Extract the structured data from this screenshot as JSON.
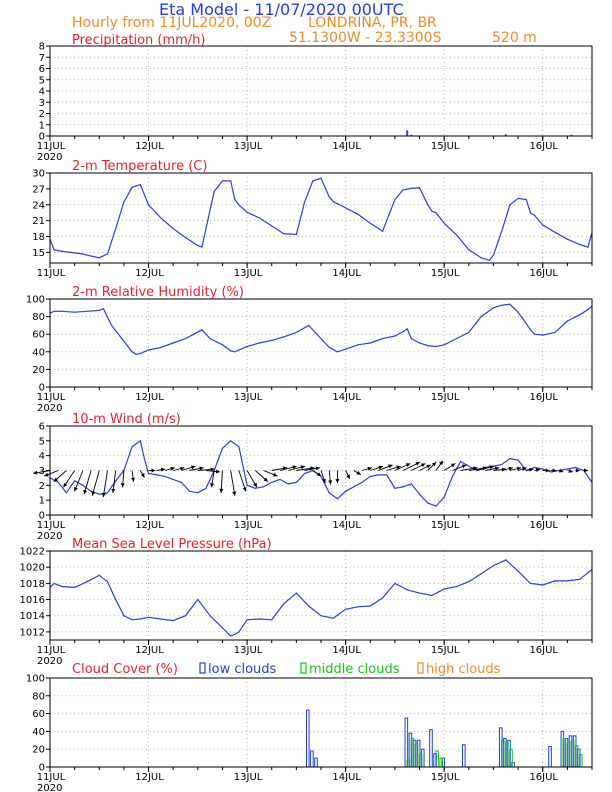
{
  "header": {
    "title": "Eta Model  -  11/07/2020 00UTC",
    "run_line": "Hourly from 11JUL2020, 00Z",
    "location": "LONDRINA, PR, BR",
    "coords": "51.1300W  -  23.3300S",
    "elevation": "520  m"
  },
  "colors": {
    "title": "#1f3fe0",
    "info": "#ee8a26",
    "panel_title": "#e8202a",
    "series": "#2a3fe0",
    "low_clouds": "#1f3fe0",
    "middle_clouds": "#16c21a",
    "high_clouds": "#ee8a26",
    "arrow": "#000000",
    "grid": "#9a9a9a"
  },
  "x_axis": {
    "range_hours": [
      0,
      132
    ],
    "tick_hours": [
      0,
      24,
      48,
      72,
      96,
      120
    ],
    "tick_labels": [
      "11JUL",
      "12JUL",
      "13JUL",
      "14JUL",
      "15JUL",
      "16JUL"
    ],
    "year_label": "2020"
  },
  "chart_data": [
    {
      "id": "precip",
      "type": "bar",
      "title": "Precipitation (mm/h)",
      "ylim": [
        0,
        8
      ],
      "yticks": [
        0,
        1,
        2,
        3,
        4,
        5,
        6,
        7,
        8
      ],
      "x_hours": [
        87,
        88,
        111,
        127
      ],
      "values": [
        0.5,
        0.1,
        0.15,
        0.1
      ]
    },
    {
      "id": "temp",
      "type": "line",
      "title": "2-m Temperature (C)",
      "ylim": [
        13,
        30
      ],
      "yticks": [
        15,
        18,
        21,
        24,
        27,
        30
      ],
      "x_hours": [
        0,
        1,
        3,
        5,
        8,
        10,
        12,
        14,
        16,
        18,
        20,
        22,
        24,
        27,
        30,
        33,
        36,
        37,
        40,
        42,
        44,
        45,
        46,
        48,
        51,
        54,
        57,
        60,
        62,
        64,
        66,
        68,
        69,
        70,
        72,
        75,
        78,
        81,
        84,
        86,
        88,
        90,
        92,
        93,
        94,
        96,
        99,
        102,
        105,
        107,
        108,
        110,
        112,
        114,
        116,
        117,
        118,
        120,
        123,
        126,
        129,
        131,
        132
      ],
      "values": [
        17.5,
        15.5,
        15.2,
        15.0,
        14.7,
        14.3,
        14.0,
        14.7,
        19.5,
        24.5,
        27.3,
        27.8,
        24,
        21.5,
        19.5,
        17.8,
        16.3,
        16.0,
        26.5,
        28.5,
        28.5,
        25.0,
        24.0,
        22.6,
        21.5,
        20.0,
        18.5,
        18.4,
        24.5,
        28.5,
        29.0,
        25.5,
        24.6,
        24.2,
        23.4,
        22.2,
        20.5,
        19.0,
        25.0,
        26.8,
        27.1,
        27.2,
        24.0,
        22.8,
        22.5,
        20.5,
        18.3,
        15.5,
        14.0,
        13.5,
        14.5,
        19.0,
        24.0,
        25.2,
        25.0,
        22.5,
        22.0,
        20.2,
        18.8,
        17.5,
        16.5,
        16.0,
        18.7
      ]
    },
    {
      "id": "rh",
      "type": "line",
      "title": "2-m Relative Humidity (%)",
      "ylim": [
        0,
        100
      ],
      "yticks": [
        0,
        20,
        40,
        60,
        80,
        100
      ],
      "x_hours": [
        0,
        1,
        3,
        6,
        9,
        12,
        13,
        15,
        18,
        20,
        21,
        22,
        24,
        27,
        30,
        33,
        35,
        37,
        39,
        42,
        44,
        45,
        46,
        48,
        51,
        54,
        57,
        60,
        63,
        66,
        68,
        70,
        72,
        75,
        78,
        81,
        84,
        86,
        87,
        88,
        90,
        92,
        94,
        96,
        99,
        102,
        105,
        108,
        110,
        112,
        114,
        116,
        117,
        118,
        120,
        123,
        126,
        129,
        131,
        132
      ],
      "values": [
        84,
        86,
        86,
        85,
        86,
        87,
        89,
        70,
        52,
        40,
        37,
        38,
        42,
        45,
        50,
        55,
        60,
        65,
        55,
        48,
        41,
        40,
        42,
        46,
        50,
        53,
        57,
        62,
        70,
        55,
        45,
        40,
        43,
        48,
        50,
        55,
        58,
        63,
        66,
        55,
        50,
        47,
        46,
        48,
        55,
        62,
        80,
        90,
        93,
        94,
        85,
        72,
        65,
        60,
        59,
        62,
        75,
        82,
        88,
        92
      ]
    },
    {
      "id": "wind",
      "type": "line",
      "title": "10-m Wind (m/s)",
      "ylim": [
        0,
        6
      ],
      "yticks": [
        0,
        1,
        2,
        3,
        4,
        5,
        6
      ],
      "x_hours": [
        0,
        2,
        4,
        6,
        8,
        10,
        12,
        14,
        16,
        18,
        20,
        22,
        23,
        24,
        26,
        28,
        30,
        32,
        34,
        36,
        38,
        40,
        42,
        44,
        46,
        48,
        50,
        52,
        54,
        56,
        58,
        60,
        62,
        64,
        66,
        68,
        70,
        72,
        74,
        76,
        78,
        80,
        82,
        84,
        86,
        88,
        90,
        92,
        94,
        96,
        98,
        100,
        102,
        104,
        106,
        108,
        110,
        112,
        114,
        116,
        118,
        120,
        122,
        124,
        126,
        128,
        130,
        132
      ],
      "values": [
        2.5,
        2.2,
        1.5,
        2.3,
        2.0,
        1.6,
        1.4,
        1.5,
        2.3,
        3.0,
        4.6,
        5.0,
        3.8,
        2.8,
        2.7,
        2.6,
        2.4,
        2.2,
        1.6,
        1.5,
        1.8,
        3.0,
        4.5,
        5.0,
        4.6,
        2.0,
        1.8,
        1.9,
        2.2,
        2.4,
        2.1,
        2.2,
        2.8,
        3.0,
        2.6,
        1.5,
        1.1,
        1.6,
        1.9,
        2.2,
        2.6,
        2.7,
        2.7,
        1.8,
        1.9,
        2.1,
        1.4,
        0.8,
        0.6,
        1.2,
        2.6,
        3.6,
        3.3,
        3.0,
        3.2,
        3.3,
        3.4,
        3.8,
        3.7,
        3.0,
        3.2,
        3.1,
        2.9,
        3.0,
        3.1,
        3.2,
        3.0,
        2.2
      ],
      "vectors": {
        "base": 3.0,
        "x_hours": [
          0,
          2,
          4,
          6,
          8,
          10,
          12,
          14,
          16,
          18,
          20,
          22,
          24,
          26,
          28,
          30,
          32,
          34,
          36,
          38,
          40,
          42,
          44,
          46,
          48,
          50,
          52,
          54,
          56,
          58,
          60,
          62,
          64,
          66,
          68,
          70,
          72,
          74,
          76,
          78,
          80,
          82,
          84,
          86,
          88,
          90,
          92,
          94,
          96,
          98,
          100,
          102,
          104,
          106,
          108,
          110,
          112,
          114,
          116,
          118,
          120,
          122,
          124,
          126,
          128,
          130
        ],
        "u": [
          -1.2,
          -1.0,
          -0.9,
          -0.8,
          -0.6,
          -0.5,
          -0.5,
          -0.3,
          -0.2,
          -0.1,
          0.1,
          0.3,
          0.5,
          0.6,
          0.7,
          0.8,
          1.0,
          1.0,
          1.2,
          1.0,
          -0.2,
          -0.1,
          0.3,
          0.5,
          0.7,
          0.9,
          1.0,
          1.1,
          1.2,
          1.2,
          1.3,
          1.1,
          0.6,
          0.3,
          0.1,
          0.0,
          0.3,
          0.5,
          0.7,
          0.9,
          1.0,
          1.0,
          1.1,
          1.2,
          1.0,
          0.8,
          0.6,
          0.5,
          0.8,
          1.0,
          1.2,
          1.3,
          1.2,
          1.0,
          0.9,
          0.8,
          0.8,
          0.6,
          0.5,
          0.4,
          0.5,
          0.4,
          0.3,
          0.4,
          0.3,
          0.3
        ],
        "v": [
          -0.2,
          -0.4,
          -0.8,
          -1.2,
          -1.5,
          -1.7,
          -1.8,
          -1.9,
          -1.6,
          -1.2,
          -0.8,
          -0.5,
          0.0,
          0.1,
          0.2,
          0.2,
          0.3,
          0.2,
          0.1,
          -0.1,
          -1.2,
          -1.6,
          -1.8,
          -1.5,
          -1.2,
          -0.8,
          -0.4,
          0.2,
          0.3,
          0.3,
          0.2,
          0.2,
          -0.4,
          -0.9,
          -1.0,
          -0.9,
          -0.6,
          -0.3,
          0.2,
          0.3,
          0.4,
          0.3,
          0.5,
          0.6,
          0.5,
          0.4,
          0.6,
          0.7,
          0.5,
          0.4,
          0.2,
          0.2,
          0.3,
          0.2,
          0.1,
          0.2,
          0.2,
          0.2,
          0.1,
          0.1,
          0.0,
          0.0,
          -0.1,
          -0.1,
          0.0,
          0.0
        ]
      }
    },
    {
      "id": "mslp",
      "type": "line",
      "title": "Mean Sea Level Pressure (hPa)",
      "ylim": [
        1011,
        1022
      ],
      "yticks": [
        1012,
        1014,
        1016,
        1018,
        1020,
        1022
      ],
      "x_hours": [
        0,
        1,
        3,
        6,
        9,
        12,
        14,
        16,
        18,
        20,
        22,
        24,
        27,
        30,
        33,
        36,
        39,
        42,
        44,
        45,
        46,
        48,
        51,
        54,
        57,
        60,
        63,
        66,
        69,
        72,
        75,
        78,
        81,
        84,
        87,
        90,
        93,
        96,
        99,
        102,
        105,
        108,
        111,
        114,
        117,
        120,
        123,
        126,
        129,
        131,
        132
      ],
      "values": [
        1017.5,
        1018.0,
        1017.6,
        1017.5,
        1018.2,
        1019.0,
        1018.2,
        1016.0,
        1014.0,
        1013.5,
        1013.6,
        1013.8,
        1013.6,
        1013.4,
        1014.0,
        1016.0,
        1014.0,
        1012.5,
        1011.5,
        1011.7,
        1012.0,
        1013.5,
        1013.6,
        1013.5,
        1015.5,
        1016.8,
        1015.2,
        1014.0,
        1013.7,
        1014.8,
        1015.1,
        1015.2,
        1016.2,
        1018.0,
        1017.2,
        1016.8,
        1016.5,
        1017.3,
        1017.6,
        1018.2,
        1019.2,
        1020.2,
        1020.9,
        1019.5,
        1018.0,
        1017.8,
        1018.3,
        1018.3,
        1018.5,
        1019.3,
        1019.7
      ]
    },
    {
      "id": "cloud",
      "type": "bar",
      "title": "Cloud Cover (%)",
      "legend": [
        "low clouds",
        "middle clouds",
        "high clouds"
      ],
      "ylim": [
        0,
        100
      ],
      "yticks": [
        0,
        20,
        40,
        60,
        80,
        100
      ],
      "series": [
        {
          "name": "low clouds",
          "x_hours": [
            63,
            64,
            65,
            87,
            88,
            89,
            90,
            91,
            93,
            94,
            96,
            101,
            110,
            111,
            112,
            113,
            122,
            125,
            126,
            127,
            128,
            129
          ],
          "values": [
            64,
            18,
            10,
            55,
            38,
            30,
            30,
            20,
            42,
            15,
            10,
            25,
            44,
            32,
            30,
            5,
            23,
            40,
            32,
            35,
            35,
            20
          ]
        },
        {
          "name": "middle clouds",
          "x_hours": [
            87,
            88,
            89,
            90,
            94,
            95,
            110,
            111,
            112,
            125,
            126,
            127,
            128,
            129
          ],
          "values": [
            8,
            32,
            26,
            14,
            18,
            10,
            30,
            28,
            20,
            32,
            28,
            30,
            24,
            14
          ]
        },
        {
          "name": "high clouds",
          "x_hours": [],
          "values": []
        }
      ]
    }
  ]
}
